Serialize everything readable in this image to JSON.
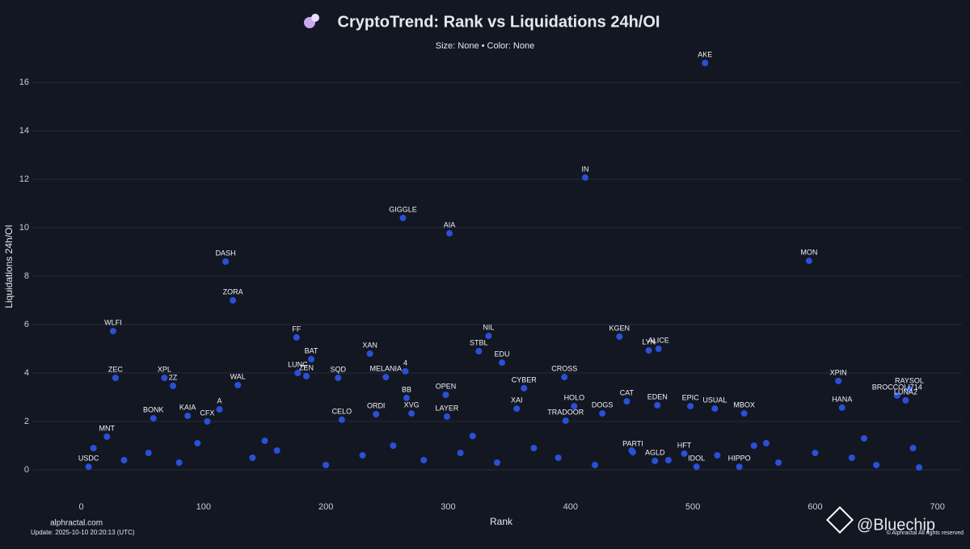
{
  "title": "CryptoTrend: Rank vs Liquidations 24h/OI",
  "subtitle": "Size: None • Color: None",
  "footer": {
    "site": "alphractal.com",
    "update": "Update: 2025-10-10 20:20:13 (UTC)",
    "handle": "@Bluechip",
    "rights": "© Alphractal All rights reserved"
  },
  "chart_data": {
    "type": "scatter",
    "x_label": "Rank",
    "y_label": "Liquidations 24h/OI",
    "color": "#2a4fd9",
    "grid": true,
    "xlim": [
      -40,
      720
    ],
    "ylim": [
      -1.3,
      17.2
    ],
    "xticks": [
      0,
      100,
      200,
      300,
      400,
      500,
      600,
      700
    ],
    "yticks": [
      0,
      2,
      4,
      6,
      8,
      10,
      12,
      14,
      16
    ],
    "labels": [
      "AKE",
      "IN",
      "GIGGLE",
      "AIA",
      "DASH",
      "MON",
      "ZORA",
      "WLFI",
      "FF",
      "NIL",
      "KGEN",
      "ALICE",
      "LYN",
      "STBL",
      "BAT",
      "XAN",
      "EDU",
      "LUNC",
      "4",
      "ZEC",
      "XPL",
      "ZEN",
      "SQD",
      "MELANIA",
      "CROSS",
      "XPIN",
      "2Z",
      "WAL",
      "OPEN",
      "CYBER",
      "RAYSOL",
      "BROCCOLI714",
      "BB",
      "LUNA2",
      "HOLO",
      "CAT",
      "HANA",
      "A",
      "EDEN",
      "EPIC",
      "USUAL",
      "MBOX",
      "KAIA",
      "BONK",
      "CFX",
      "DOGS",
      "TRADOOR",
      "CELO",
      "ORDI",
      "XVG",
      "LAYER",
      "XAI",
      "MNT",
      "HFT",
      "IDOL",
      "HIPPO",
      "AGLD",
      "PARTI",
      "USDC",
      null,
      null,
      null,
      null,
      null,
      null,
      null,
      null,
      null,
      null,
      null,
      null,
      null,
      null,
      null,
      null,
      null,
      null,
      null,
      null,
      null,
      null,
      null,
      null,
      null,
      null,
      null,
      null,
      null,
      null
    ],
    "x": [
      510,
      412,
      263,
      301,
      118,
      595,
      124,
      26,
      176,
      333,
      440,
      472,
      464,
      325,
      188,
      236,
      344,
      177,
      265,
      28,
      68,
      184,
      210,
      249,
      395,
      619,
      75,
      128,
      298,
      362,
      677,
      667,
      266,
      674,
      403,
      446,
      622,
      113,
      471,
      498,
      518,
      542,
      87,
      59,
      103,
      426,
      396,
      213,
      241,
      270,
      299,
      356,
      21,
      493,
      503,
      538,
      469,
      451,
      6,
      10,
      35,
      55,
      80,
      95,
      140,
      160,
      200,
      230,
      255,
      280,
      310,
      340,
      370,
      390,
      420,
      450,
      480,
      520,
      550,
      570,
      600,
      630,
      650,
      680,
      685,
      150,
      320,
      560,
      640
    ],
    "values": [
      16.8,
      12.07,
      10.4,
      9.77,
      8.6,
      8.63,
      7.0,
      5.73,
      5.47,
      5.53,
      5.5,
      5.0,
      4.93,
      4.9,
      4.57,
      4.8,
      4.43,
      4.0,
      4.07,
      3.8,
      3.8,
      3.87,
      3.8,
      3.83,
      3.83,
      3.67,
      3.47,
      3.5,
      3.1,
      3.37,
      3.33,
      3.07,
      2.97,
      2.87,
      2.63,
      2.83,
      2.57,
      2.5,
      2.67,
      2.63,
      2.53,
      2.33,
      2.23,
      2.13,
      2.0,
      2.33,
      2.03,
      2.07,
      2.3,
      2.33,
      2.2,
      2.53,
      1.37,
      0.67,
      0.13,
      0.13,
      0.37,
      0.73,
      0.13,
      0.9,
      0.4,
      0.7,
      0.3,
      1.1,
      0.5,
      0.8,
      0.2,
      0.6,
      1.0,
      0.4,
      0.7,
      0.3,
      0.9,
      0.5,
      0.2,
      0.8,
      0.4,
      0.6,
      1.0,
      0.3,
      0.7,
      0.5,
      0.2,
      0.9,
      0.1,
      1.2,
      1.4,
      1.1,
      1.3
    ]
  }
}
